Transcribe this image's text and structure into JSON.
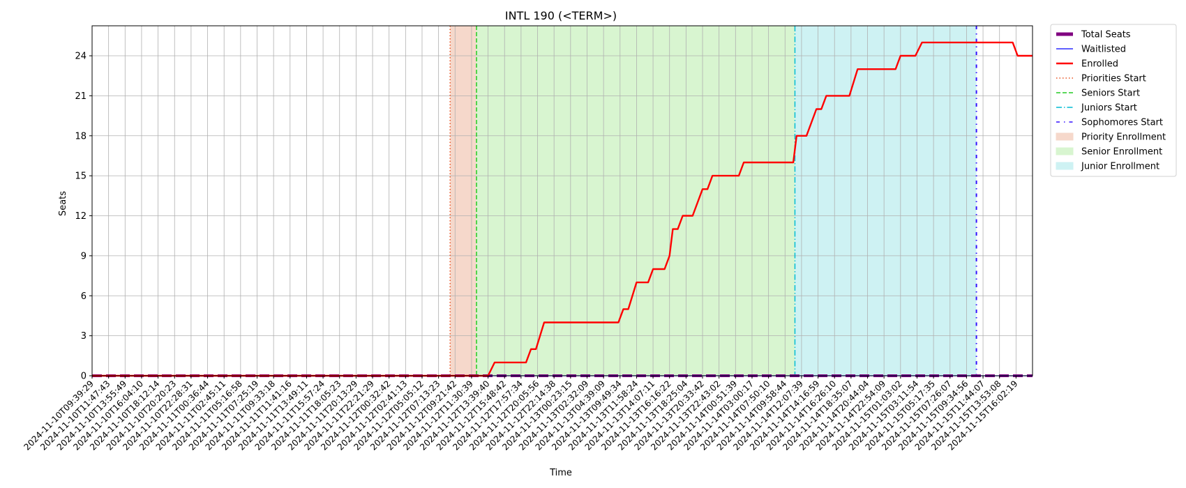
{
  "chart_data": {
    "type": "line",
    "title": "INTL 190 (<TERM>)",
    "xlabel": "Time",
    "ylabel": "Seats",
    "ylim": [
      0,
      26.25
    ],
    "yticks": [
      0,
      3,
      6,
      9,
      12,
      15,
      18,
      21,
      24
    ],
    "grid": true,
    "legend_position": "outside-top-right",
    "x_tick_labels": [
      "2024-11-10T09:39:29",
      "2024-11-10T11:47:43",
      "2024-11-10T13:55:49",
      "2024-11-10T16:04:10",
      "2024-11-10T18:12:14",
      "2024-11-10T20:20:23",
      "2024-11-10T22:28:31",
      "2024-11-11T00:36:44",
      "2024-11-11T02:45:11",
      "2024-11-11T05:16:58",
      "2024-11-11T07:25:19",
      "2024-11-11T09:33:18",
      "2024-11-11T11:41:16",
      "2024-11-11T13:49:11",
      "2024-11-11T15:57:24",
      "2024-11-11T18:05:23",
      "2024-11-11T20:13:29",
      "2024-11-11T22:21:29",
      "2024-11-12T00:32:42",
      "2024-11-12T02:41:13",
      "2024-11-12T05:05:12",
      "2024-11-12T07:13:23",
      "2024-11-12T09:21:42",
      "2024-11-12T11:30:39",
      "2024-11-12T13:39:40",
      "2024-11-12T15:48:42",
      "2024-11-12T17:57:34",
      "2024-11-12T20:05:56",
      "2024-11-12T22:14:38",
      "2024-11-13T00:23:15",
      "2024-11-13T02:32:09",
      "2024-11-13T04:39:09",
      "2024-11-13T09:49:34",
      "2024-11-13T11:58:24",
      "2024-11-13T14:07:11",
      "2024-11-13T16:16:22",
      "2024-11-13T18:25:04",
      "2024-11-13T20:33:42",
      "2024-11-13T22:43:02",
      "2024-11-14T00:51:39",
      "2024-11-14T03:00:17",
      "2024-11-14T07:50:10",
      "2024-11-14T09:58:44",
      "2024-11-14T12:07:39",
      "2024-11-14T14:16:59",
      "2024-11-14T16:26:10",
      "2024-11-14T18:35:07",
      "2024-11-14T20:44:04",
      "2024-11-14T22:54:09",
      "2024-11-15T01:03:02",
      "2024-11-15T03:11:54",
      "2024-11-15T05:17:35",
      "2024-11-15T07:26:07",
      "2024-11-15T09:34:56",
      "2024-11-15T11:44:07",
      "2024-11-15T13:53:08",
      "2024-11-15T16:02:19"
    ],
    "series": [
      {
        "name": "Total Seats",
        "color": "#800080",
        "style": "thick-dashed",
        "points": [
          [
            0,
            0
          ],
          [
            57,
            0
          ]
        ]
      },
      {
        "name": "Waitlisted",
        "color": "#0000ff",
        "style": "solid-thin",
        "points": [
          [
            0,
            0
          ],
          [
            57,
            0
          ]
        ]
      },
      {
        "name": "Enrolled",
        "color": "#ff0000",
        "style": "solid-thick",
        "points": [
          [
            0,
            0
          ],
          [
            24.0,
            0
          ],
          [
            24.4,
            1
          ],
          [
            26.3,
            1
          ],
          [
            26.6,
            2
          ],
          [
            26.9,
            2
          ],
          [
            27.4,
            4
          ],
          [
            31.9,
            4
          ],
          [
            32.2,
            5
          ],
          [
            32.5,
            5
          ],
          [
            33.0,
            7
          ],
          [
            33.7,
            7
          ],
          [
            34.0,
            8
          ],
          [
            34.7,
            8
          ],
          [
            35.0,
            9
          ],
          [
            35.2,
            11
          ],
          [
            35.5,
            11
          ],
          [
            35.8,
            12
          ],
          [
            36.4,
            12
          ],
          [
            37.0,
            14
          ],
          [
            37.3,
            14
          ],
          [
            37.6,
            15
          ],
          [
            39.2,
            15
          ],
          [
            39.5,
            16
          ],
          [
            42.5,
            16
          ],
          [
            42.7,
            18
          ],
          [
            43.3,
            18
          ],
          [
            43.9,
            20
          ],
          [
            44.2,
            20
          ],
          [
            44.5,
            21
          ],
          [
            45.9,
            21
          ],
          [
            46.4,
            23
          ],
          [
            48.7,
            23
          ],
          [
            49.0,
            24
          ],
          [
            49.9,
            24
          ],
          [
            50.3,
            25
          ],
          [
            55.8,
            25
          ],
          [
            56.1,
            24
          ],
          [
            57,
            24
          ]
        ]
      }
    ],
    "vlines": [
      {
        "name": "Priorities Start",
        "color": "#e8501e",
        "style": "dotted",
        "x": 21.7
      },
      {
        "name": "Seniors Start",
        "color": "#22cc22",
        "style": "dashed",
        "x": 23.3
      },
      {
        "name": "Juniors Start",
        "color": "#00bcd4",
        "style": "dashdot",
        "x": 42.6
      },
      {
        "name": "Sophomores Start",
        "color": "#3311ff",
        "style": "loose-dashdot",
        "x": 53.6
      }
    ],
    "spans": [
      {
        "name": "Priority Enrollment",
        "color": "#f6d8cb",
        "from": 21.7,
        "to": 23.3
      },
      {
        "name": "Senior Enrollment",
        "color": "#d8f5d0",
        "from": 23.3,
        "to": 42.6
      },
      {
        "name": "Junior Enrollment",
        "color": "#cef2f3",
        "from": 42.6,
        "to": 53.6
      }
    ],
    "legend": [
      "Total Seats",
      "Waitlisted",
      "Enrolled",
      "Priorities Start",
      "Seniors Start",
      "Juniors Start",
      "Sophomores Start",
      "Priority Enrollment",
      "Senior Enrollment",
      "Junior Enrollment"
    ]
  }
}
